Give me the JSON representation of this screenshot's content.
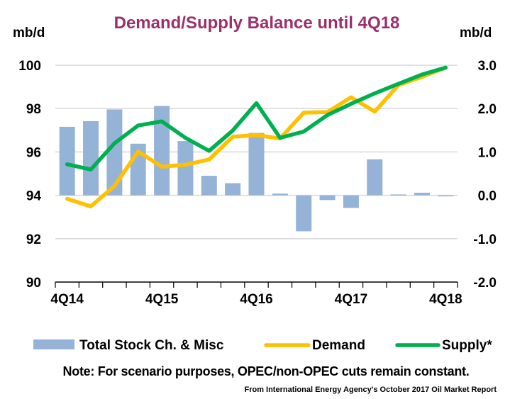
{
  "chart_data": {
    "type": "bar+line",
    "title": "Demand/Supply Balance until 4Q18",
    "ylabel_left": "mb/d",
    "ylabel_right": "mb/d",
    "ylim_left": [
      90,
      100
    ],
    "ylim_right": [
      -2.0,
      3.0
    ],
    "yticks_left": [
      "90",
      "92",
      "94",
      "96",
      "98",
      "100"
    ],
    "yticks_right": [
      "-2.0",
      "-1.0",
      "0.0",
      "1.0",
      "2.0",
      "3.0"
    ],
    "grid": true,
    "legend_position": "bottom",
    "categories": [
      "4Q14",
      "1Q15",
      "2Q15",
      "3Q15",
      "4Q15",
      "1Q16",
      "2Q16",
      "3Q16",
      "4Q16",
      "1Q17",
      "2Q17",
      "3Q17",
      "4Q17",
      "1Q18",
      "2Q18",
      "3Q18",
      "4Q18"
    ],
    "xtick_labels": [
      "4Q14",
      "4Q15",
      "4Q16",
      "4Q17",
      "4Q18"
    ],
    "series": [
      {
        "name": "Total Stock Ch. & Misc",
        "type": "bar",
        "axis": "right",
        "color": "#95B3D7",
        "values": [
          1.58,
          1.71,
          1.98,
          1.19,
          2.06,
          1.25,
          0.45,
          0.28,
          1.44,
          0.04,
          -0.83,
          -0.11,
          -0.29,
          0.83,
          0.02,
          0.06,
          -0.02
        ]
      },
      {
        "name": "Demand",
        "type": "line",
        "axis": "left",
        "color": "#FFC000",
        "values": [
          93.84,
          93.49,
          94.43,
          96.02,
          95.32,
          95.41,
          95.65,
          96.7,
          96.78,
          96.62,
          97.81,
          97.84,
          98.52,
          97.86,
          99.08,
          99.46,
          99.89
        ]
      },
      {
        "name": "Supply*",
        "type": "line",
        "axis": "left",
        "color": "#00B050",
        "values": [
          95.43,
          95.19,
          96.4,
          97.22,
          97.41,
          96.65,
          96.05,
          96.99,
          98.25,
          96.65,
          96.94,
          97.7,
          98.22,
          98.7,
          99.14,
          99.57,
          99.89
        ]
      }
    ],
    "title_color": "#9B2F6B"
  },
  "note": "Note: For scenario purposes, OPEC/non-OPEC cuts remain constant.",
  "source": "From International Energy Agency's October 2017 Oil Market Report"
}
